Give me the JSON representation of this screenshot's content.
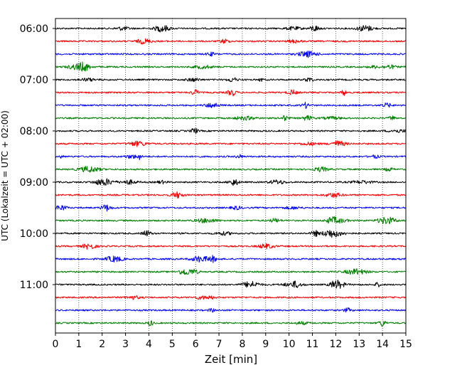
{
  "chart_data": {
    "type": "line",
    "title": "",
    "xlabel": "Zeit  [min]",
    "ylabel": "UTC (Lokalzeit = UTC + 02:00)",
    "xlim": [
      0,
      15
    ],
    "x_ticks": [
      "0",
      "1",
      "2",
      "3",
      "4",
      "5",
      "6",
      "7",
      "8",
      "9",
      "10",
      "11",
      "12",
      "13",
      "14",
      "15"
    ],
    "y_tick_labels": [
      "06:00",
      "07:00",
      "08:00",
      "09:00",
      "10:00",
      "11:00"
    ],
    "rows_per_hour": 4,
    "minutes_per_row": 15,
    "grid": "vertical dotted at each minute",
    "series_cycle_colors": [
      "#000000",
      "#ff0000",
      "#0000ff",
      "#008000"
    ],
    "traces": [
      {
        "start": "06:00",
        "color": "#000000"
      },
      {
        "start": "06:15",
        "color": "#ff0000"
      },
      {
        "start": "06:30",
        "color": "#0000ff"
      },
      {
        "start": "06:45",
        "color": "#008000"
      },
      {
        "start": "07:00",
        "color": "#000000"
      },
      {
        "start": "07:15",
        "color": "#ff0000"
      },
      {
        "start": "07:30",
        "color": "#0000ff"
      },
      {
        "start": "07:45",
        "color": "#008000"
      },
      {
        "start": "08:00",
        "color": "#000000"
      },
      {
        "start": "08:15",
        "color": "#ff0000"
      },
      {
        "start": "08:30",
        "color": "#0000ff"
      },
      {
        "start": "08:45",
        "color": "#008000"
      },
      {
        "start": "09:00",
        "color": "#000000"
      },
      {
        "start": "09:15",
        "color": "#ff0000"
      },
      {
        "start": "09:30",
        "color": "#0000ff"
      },
      {
        "start": "09:45",
        "color": "#008000"
      },
      {
        "start": "10:00",
        "color": "#000000"
      },
      {
        "start": "10:15",
        "color": "#ff0000"
      },
      {
        "start": "10:30",
        "color": "#0000ff"
      },
      {
        "start": "10:45",
        "color": "#008000"
      },
      {
        "start": "11:00",
        "color": "#000000"
      },
      {
        "start": "11:15",
        "color": "#ff0000"
      },
      {
        "start": "11:30",
        "color": "#0000ff"
      },
      {
        "start": "11:45",
        "color": "#008000"
      }
    ]
  }
}
